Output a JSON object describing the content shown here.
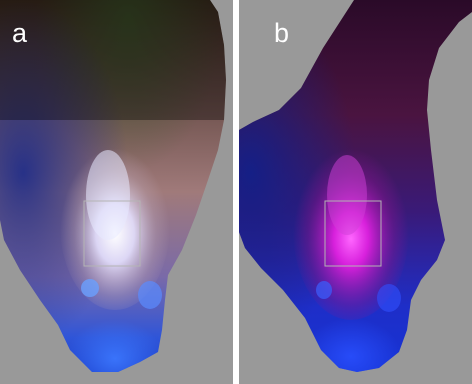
{
  "panels": [
    {
      "label": "a",
      "tint": "natural-color"
    },
    {
      "label": "b",
      "tint": "magenta-blue"
    }
  ],
  "colors": {
    "background": "#999999",
    "roi_box": "#b4b4b4",
    "label": "#ffffff"
  }
}
